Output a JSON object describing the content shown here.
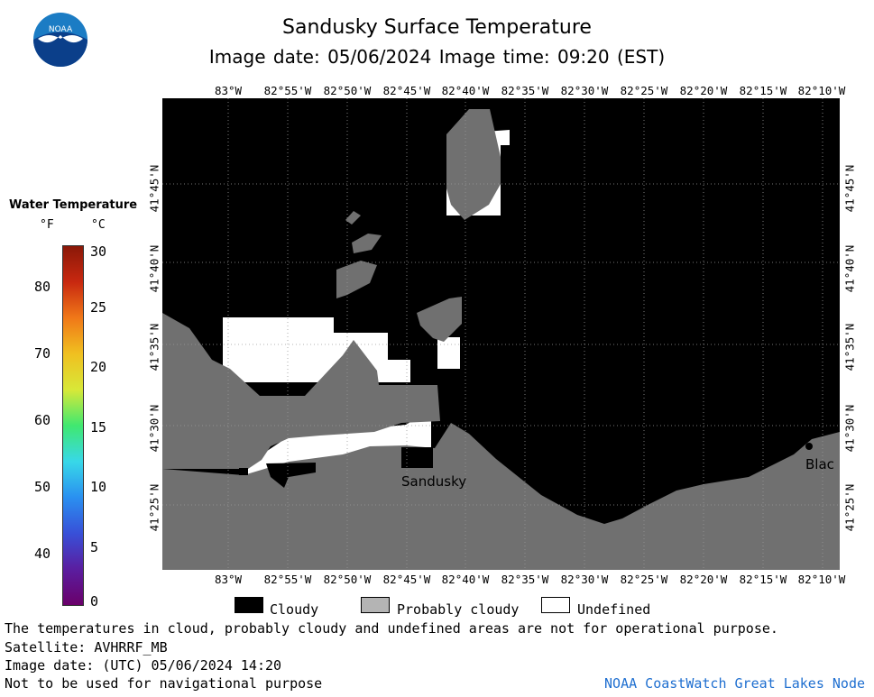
{
  "header": {
    "title": "Sandusky Surface Temperature",
    "subtitle": "Image date: 05/06/2024     Image time: 09:20 (EST)"
  },
  "logo": {
    "text": "NOAA",
    "colors": {
      "top": "#1b7cc4",
      "bottom": "#0b3f8a"
    }
  },
  "longitude_labels": [
    "83°W",
    "82°55'W",
    "82°50'W",
    "82°45'W",
    "82°40'W",
    "82°35'W",
    "82°30'W",
    "82°25'W",
    "82°20'W",
    "82°15'W",
    "82°10'W"
  ],
  "latitude_labels": [
    "41°45'N",
    "41°40'N",
    "41°35'N",
    "41°30'N",
    "41°25'N"
  ],
  "place_labels": {
    "sandusky": "Sandusky",
    "bay": "Blac"
  },
  "colorbar": {
    "title": "Water Temperature",
    "unit_f": "°F",
    "unit_c": "°C",
    "fahrenheit_ticks": [
      "40",
      "50",
      "60",
      "70",
      "80"
    ],
    "celsius_ticks": [
      "0",
      "5",
      "10",
      "15",
      "20",
      "25",
      "30"
    ],
    "gradient": [
      "#6a006a",
      "#5a1ea0",
      "#3850d8",
      "#2a90f0",
      "#38d8e8",
      "#40e870",
      "#d8e838",
      "#f0c020",
      "#f07818",
      "#c82810",
      "#8a1808"
    ]
  },
  "legend": {
    "cloudy": "Cloudy",
    "probably_cloudy": "Probably cloudy",
    "undefined": "Undefined",
    "colors": {
      "cloudy": "#000000",
      "probably_cloudy": "#b4b4b4",
      "undefined": "#ffffff",
      "land": "#707070",
      "water_cloud": "#000000"
    }
  },
  "notes": {
    "line1": "The temperatures in cloud, probably cloudy and undefined areas are not for operational purpose.",
    "line2": "Satellite: AVHRRF_MB",
    "line3": "Image date: (UTC) 05/06/2024  14:20",
    "line4": "Not to be used for navigational purpose",
    "credit": "NOAA CoastWatch Great Lakes Node"
  }
}
